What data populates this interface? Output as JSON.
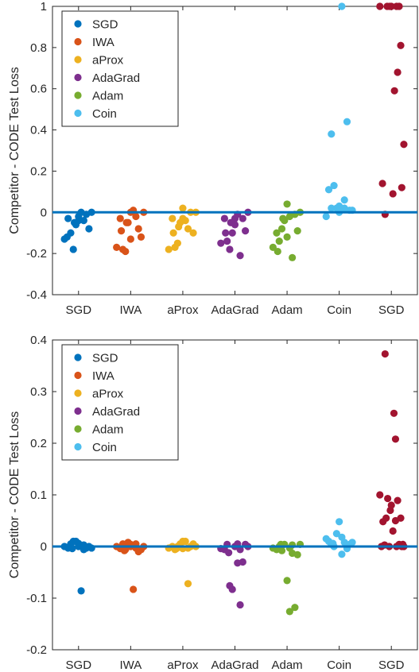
{
  "colors": {
    "SGD": "#0072BD",
    "IWA": "#D95319",
    "aProx": "#EDB120",
    "AdaGrad": "#7E2F8E",
    "Adam": "#77AC30",
    "Coin": "#4DBEEE",
    "SGD_outlier": "#A2142F",
    "zero_line": "#0072BD"
  },
  "chart_data": [
    {
      "type": "scatter",
      "ylabel": "Competitor - CODE Test Loss",
      "categories": [
        "SGD",
        "IWA",
        "aProx",
        "AdaGrad",
        "Adam",
        "Coin",
        "SGD"
      ],
      "ylim": [
        -0.4,
        1
      ],
      "yticks": [
        -0.4,
        -0.2,
        0,
        0.2,
        0.4,
        0.6,
        0.8,
        1
      ],
      "ytick_labels": [
        "-0.4",
        "-0.2",
        "0",
        "0.2",
        "0.4",
        "0.6",
        "0.8",
        "1"
      ],
      "grid": false,
      "reference_line": 0,
      "legend": {
        "placement": "top-left",
        "entries": [
          "SGD",
          "IWA",
          "aProx",
          "AdaGrad",
          "Adam",
          "Coin"
        ]
      },
      "series": [
        {
          "category_index": 0,
          "color_key": "SGD",
          "points": [
            [
              -0.27,
              -0.13
            ],
            [
              -0.2,
              -0.03
            ],
            [
              -0.15,
              -0.1
            ],
            [
              -0.1,
              -0.18
            ],
            [
              -0.05,
              -0.06
            ],
            [
              0.0,
              -0.02
            ],
            [
              0.05,
              0.0
            ],
            [
              0.1,
              -0.04
            ],
            [
              0.15,
              -0.01
            ],
            [
              0.2,
              -0.08
            ],
            [
              0.25,
              0.0
            ],
            [
              -0.22,
              -0.12
            ],
            [
              0.0,
              -0.04
            ],
            [
              -0.08,
              -0.05
            ]
          ]
        },
        {
          "category_index": 1,
          "color_key": "IWA",
          "points": [
            [
              -0.27,
              -0.17
            ],
            [
              -0.2,
              -0.03
            ],
            [
              -0.15,
              -0.18
            ],
            [
              -0.1,
              -0.19
            ],
            [
              -0.05,
              -0.05
            ],
            [
              0.0,
              0.0
            ],
            [
              0.05,
              0.01
            ],
            [
              0.1,
              -0.02
            ],
            [
              0.15,
              -0.08
            ],
            [
              0.2,
              -0.12
            ],
            [
              0.25,
              0.0
            ],
            [
              -0.18,
              -0.09
            ],
            [
              0.0,
              -0.13
            ],
            [
              -0.08,
              -0.05
            ]
          ]
        },
        {
          "category_index": 2,
          "color_key": "aProx",
          "points": [
            [
              -0.27,
              -0.18
            ],
            [
              -0.2,
              -0.03
            ],
            [
              -0.15,
              -0.17
            ],
            [
              -0.1,
              -0.15
            ],
            [
              -0.05,
              -0.05
            ],
            [
              0.0,
              0.02
            ],
            [
              0.05,
              -0.04
            ],
            [
              0.1,
              -0.08
            ],
            [
              0.15,
              0.0
            ],
            [
              0.2,
              -0.1
            ],
            [
              0.25,
              0.0
            ],
            [
              -0.18,
              -0.1
            ],
            [
              0.0,
              -0.03
            ],
            [
              -0.08,
              -0.07
            ]
          ]
        },
        {
          "category_index": 3,
          "color_key": "AdaGrad",
          "points": [
            [
              -0.27,
              -0.15
            ],
            [
              -0.2,
              -0.03
            ],
            [
              -0.15,
              -0.14
            ],
            [
              -0.1,
              -0.18
            ],
            [
              -0.05,
              -0.1
            ],
            [
              0.0,
              -0.06
            ],
            [
              0.05,
              -0.01
            ],
            [
              0.1,
              -0.21
            ],
            [
              0.15,
              -0.03
            ],
            [
              0.2,
              -0.09
            ],
            [
              0.25,
              0.0
            ],
            [
              -0.18,
              -0.1
            ],
            [
              0.0,
              -0.03
            ],
            [
              -0.08,
              -0.05
            ]
          ]
        },
        {
          "category_index": 4,
          "color_key": "Adam",
          "points": [
            [
              -0.27,
              -0.17
            ],
            [
              -0.2,
              -0.1
            ],
            [
              -0.15,
              -0.14
            ],
            [
              -0.1,
              -0.08
            ],
            [
              -0.05,
              -0.04
            ],
            [
              0.0,
              0.04
            ],
            [
              0.05,
              -0.02
            ],
            [
              0.1,
              -0.22
            ],
            [
              0.15,
              -0.01
            ],
            [
              0.2,
              -0.09
            ],
            [
              0.25,
              0.0
            ],
            [
              -0.18,
              -0.19
            ],
            [
              0.0,
              -0.12
            ],
            [
              -0.08,
              -0.03
            ]
          ]
        },
        {
          "category_index": 5,
          "color_key": "Coin",
          "points": [
            [
              -0.25,
              -0.02
            ],
            [
              -0.2,
              0.11
            ],
            [
              -0.15,
              0.38
            ],
            [
              -0.1,
              0.13
            ],
            [
              -0.05,
              0.02
            ],
            [
              0.0,
              0.03
            ],
            [
              0.05,
              1.0
            ],
            [
              0.1,
              0.06
            ],
            [
              0.15,
              0.44
            ],
            [
              0.2,
              0.01
            ],
            [
              0.25,
              0.01
            ],
            [
              -0.15,
              0.02
            ],
            [
              0.0,
              0.0
            ],
            [
              0.1,
              0.02
            ]
          ]
        },
        {
          "category_index": 6,
          "color_key": "SGD_outlier",
          "points": [
            [
              -0.22,
              1.0
            ],
            [
              -0.17,
              0.14
            ],
            [
              -0.12,
              -0.01
            ],
            [
              -0.08,
              1.0
            ],
            [
              -0.03,
              1.0
            ],
            [
              0.0,
              1.0
            ],
            [
              0.03,
              0.09
            ],
            [
              0.06,
              0.59
            ],
            [
              0.1,
              1.0
            ],
            [
              0.12,
              0.68
            ],
            [
              0.15,
              1.0
            ],
            [
              0.18,
              0.81
            ],
            [
              0.2,
              0.12
            ],
            [
              0.24,
              0.33
            ]
          ]
        }
      ]
    },
    {
      "type": "scatter",
      "ylabel": "Competitor - CODE Test Loss",
      "categories": [
        "SGD",
        "IWA",
        "aProx",
        "AdaGrad",
        "Adam",
        "Coin",
        "SGD"
      ],
      "ylim": [
        -0.2,
        0.4
      ],
      "yticks": [
        -0.2,
        -0.1,
        0,
        0.1,
        0.2,
        0.3,
        0.4
      ],
      "ytick_labels": [
        "-0.2",
        "-0.1",
        "0",
        "0.1",
        "0.2",
        "0.3",
        "0.4"
      ],
      "grid": false,
      "reference_line": 0,
      "legend": {
        "placement": "top-left",
        "entries": [
          "SGD",
          "IWA",
          "aProx",
          "AdaGrad",
          "Adam",
          "Coin"
        ]
      },
      "series": [
        {
          "category_index": 0,
          "color_key": "SGD",
          "points": [
            [
              -0.27,
              0.0
            ],
            [
              -0.2,
              -0.003
            ],
            [
              -0.15,
              0.005
            ],
            [
              -0.1,
              0.01
            ],
            [
              -0.05,
              0.01
            ],
            [
              0.0,
              0.0
            ],
            [
              0.05,
              -0.086
            ],
            [
              0.1,
              0.003
            ],
            [
              0.15,
              -0.003
            ],
            [
              0.2,
              0.0
            ],
            [
              0.25,
              -0.003
            ],
            [
              -0.12,
              -0.004
            ],
            [
              0.0,
              0.006
            ],
            [
              0.1,
              -0.006
            ]
          ]
        },
        {
          "category_index": 1,
          "color_key": "IWA",
          "points": [
            [
              -0.27,
              0.0
            ],
            [
              -0.2,
              -0.004
            ],
            [
              -0.15,
              0.005
            ],
            [
              -0.1,
              -0.006
            ],
            [
              -0.05,
              0.008
            ],
            [
              0.0,
              0.0
            ],
            [
              0.05,
              -0.083
            ],
            [
              0.1,
              0.005
            ],
            [
              0.15,
              -0.01
            ],
            [
              0.2,
              -0.006
            ],
            [
              0.25,
              0.0
            ],
            [
              -0.12,
              -0.008
            ],
            [
              0.0,
              0.004
            ],
            [
              0.1,
              -0.003
            ]
          ]
        },
        {
          "category_index": 2,
          "color_key": "aProx",
          "points": [
            [
              -0.27,
              -0.003
            ],
            [
              -0.2,
              0.0
            ],
            [
              -0.15,
              -0.006
            ],
            [
              -0.1,
              0.0
            ],
            [
              -0.05,
              0.005
            ],
            [
              0.0,
              0.01
            ],
            [
              0.05,
              0.01
            ],
            [
              0.1,
              -0.072
            ],
            [
              0.15,
              0.0
            ],
            [
              0.2,
              0.005
            ],
            [
              0.25,
              0.0
            ],
            [
              -0.12,
              -0.004
            ],
            [
              0.0,
              -0.004
            ],
            [
              0.1,
              -0.003
            ]
          ]
        },
        {
          "category_index": 3,
          "color_key": "AdaGrad",
          "points": [
            [
              -0.27,
              -0.004
            ],
            [
              -0.2,
              -0.006
            ],
            [
              -0.15,
              0.004
            ],
            [
              -0.1,
              -0.076
            ],
            [
              -0.05,
              -0.083
            ],
            [
              0.0,
              0.0
            ],
            [
              0.05,
              -0.032
            ],
            [
              0.1,
              -0.113
            ],
            [
              0.15,
              -0.03
            ],
            [
              0.2,
              0.004
            ],
            [
              0.25,
              0.0
            ],
            [
              -0.12,
              -0.012
            ],
            [
              0.05,
              0.005
            ],
            [
              0.1,
              -0.006
            ]
          ]
        },
        {
          "category_index": 4,
          "color_key": "Adam",
          "points": [
            [
              -0.27,
              -0.003
            ],
            [
              -0.2,
              -0.006
            ],
            [
              -0.15,
              0.0
            ],
            [
              -0.1,
              -0.008
            ],
            [
              -0.05,
              0.004
            ],
            [
              0.0,
              -0.066
            ],
            [
              0.05,
              -0.126
            ],
            [
              0.1,
              0.003
            ],
            [
              0.15,
              -0.118
            ],
            [
              0.2,
              -0.016
            ],
            [
              0.25,
              0.004
            ],
            [
              -0.12,
              0.004
            ],
            [
              0.05,
              -0.003
            ],
            [
              0.1,
              -0.013
            ]
          ]
        },
        {
          "category_index": 5,
          "color_key": "Coin",
          "points": [
            [
              -0.25,
              0.015
            ],
            [
              -0.2,
              0.01
            ],
            [
              -0.15,
              0.004
            ],
            [
              -0.1,
              0.0
            ],
            [
              -0.05,
              0.025
            ],
            [
              0.0,
              0.048
            ],
            [
              0.05,
              0.018
            ],
            [
              0.1,
              0.008
            ],
            [
              0.15,
              -0.004
            ],
            [
              0.2,
              0.004
            ],
            [
              0.25,
              0.008
            ],
            [
              -0.12,
              0.006
            ],
            [
              0.05,
              -0.015
            ],
            [
              0.15,
              0.002
            ]
          ]
        },
        {
          "category_index": 6,
          "color_key": "SGD_outlier",
          "points": [
            [
              -0.22,
              0.1
            ],
            [
              -0.19,
              0.0
            ],
            [
              -0.16,
              0.048
            ],
            [
              -0.12,
              0.373
            ],
            [
              -0.1,
              0.055
            ],
            [
              -0.07,
              0.093
            ],
            [
              -0.04,
              0.0
            ],
            [
              -0.02,
              0.07
            ],
            [
              0.0,
              0.08
            ],
            [
              0.03,
              0.03
            ],
            [
              0.05,
              0.258
            ],
            [
              0.08,
              0.208
            ],
            [
              0.1,
              0.0
            ],
            [
              0.12,
              0.089
            ],
            [
              0.15,
              0.004
            ],
            [
              0.18,
              0.055
            ],
            [
              0.2,
              0.0
            ],
            [
              0.22,
              0.004
            ],
            [
              0.24,
              0.0
            ],
            [
              0.08,
              0.05
            ],
            [
              -0.13,
              0.003
            ]
          ]
        }
      ]
    }
  ]
}
